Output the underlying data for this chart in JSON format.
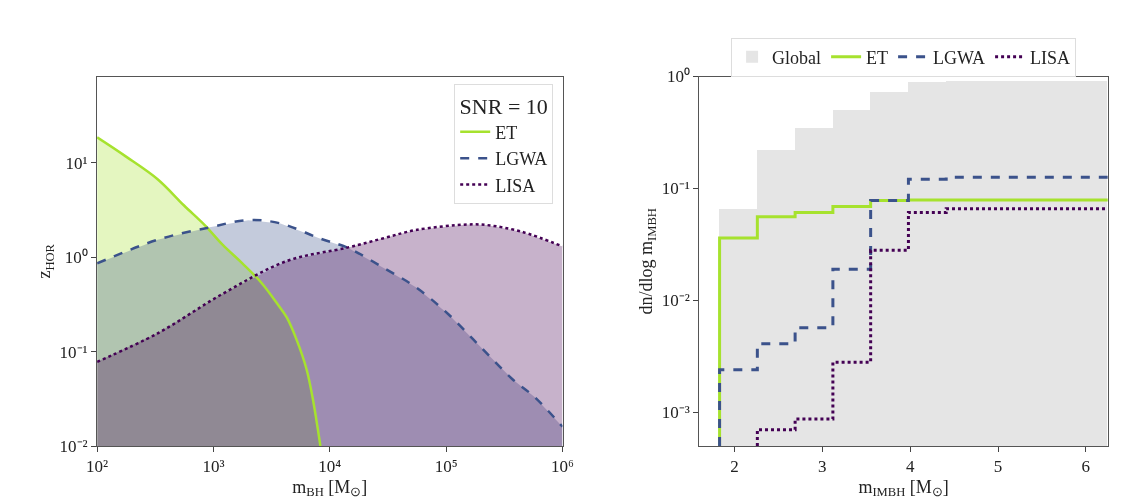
{
  "chart_data": [
    {
      "type": "area",
      "xlabel": "m$_{BH}$ [M$_{⊙}$]",
      "ylabel": "z$_{HOR}$",
      "legend_title": "SNR = 10",
      "legend": "top right",
      "log": "xy",
      "xlim": [
        100,
        1000000
      ],
      "ylim": [
        0.01,
        82
      ],
      "xticks": [
        {
          "value": 100,
          "label": "10²"
        },
        {
          "value": 1000,
          "label": "10³"
        },
        {
          "value": 10000,
          "label": "10⁴"
        },
        {
          "value": 100000,
          "label": "10⁵"
        },
        {
          "value": 1000000,
          "label": "10⁶"
        }
      ],
      "yticks": [
        {
          "value": 0.01,
          "label": "10⁻²"
        },
        {
          "value": 0.1,
          "label": "10⁻¹"
        },
        {
          "value": 1,
          "label": "10⁰"
        },
        {
          "value": 10,
          "label": "10¹"
        }
      ],
      "series": [
        {
          "name": "ET",
          "color": "#a6e22e",
          "line_style": "solid",
          "x": [
            100,
            176,
            331,
            556,
            841,
            1202,
            1754,
            2570,
            3548,
            4266,
            5188,
            6310,
            7129,
            8300
          ],
          "values": [
            18.6,
            11.7,
            6.7,
            3.55,
            2.19,
            1.35,
            0.87,
            0.54,
            0.32,
            0.23,
            0.133,
            0.065,
            0.032,
            0.01
          ]
        },
        {
          "name": "LGWA",
          "color": "#3b528b",
          "line_style": "dashed",
          "x": [
            100,
            331,
            927,
            1995,
            3767,
            8110,
            14390,
            29040,
            54950,
            104000,
            195000,
            371500,
            575400,
            1000000
          ],
          "values": [
            0.86,
            1.53,
            2.07,
            2.47,
            2.28,
            1.59,
            1.25,
            0.77,
            0.48,
            0.25,
            0.114,
            0.051,
            0.033,
            0.016
          ]
        },
        {
          "name": "LISA",
          "color": "#440154",
          "line_style": "dotted",
          "x": [
            100,
            331,
            1202,
            4266,
            14390,
            29040,
            54950,
            151400,
            223900,
            446700,
            1000000
          ],
          "values": [
            0.078,
            0.156,
            0.41,
            0.91,
            1.27,
            1.59,
            1.94,
            2.22,
            2.19,
            1.86,
            1.3
          ]
        }
      ]
    },
    {
      "type": "histogram",
      "xlabel": "m$_{IMBH}$ [M$_{⊙}$]",
      "ylabel": "dn/dlog m$_{IMBH}$",
      "legend": "top",
      "log": "y",
      "xlim": [
        1.6,
        6.25
      ],
      "ylim": [
        0.0005,
        1.0
      ],
      "xticks": [
        2,
        3,
        4,
        5,
        6
      ],
      "yticks": [
        {
          "value": 0.001,
          "label": "10⁻³"
        },
        {
          "value": 0.01,
          "label": "10⁻²"
        },
        {
          "value": 0.1,
          "label": "10⁻¹"
        },
        {
          "value": 1,
          "label": "10⁰"
        }
      ],
      "bins": [
        1.83,
        2.26,
        2.69,
        3.12,
        3.55,
        3.98,
        4.41,
        6.25
      ],
      "series": [
        {
          "name": "Global",
          "color": "#e5e5e5",
          "values": [
            0.066,
            0.22,
            0.35,
            0.51,
            0.73,
            0.91,
            0.93
          ]
        },
        {
          "name": "ET",
          "color": "#a6e22e",
          "line_style": "solid",
          "values": [
            0.036,
            0.056,
            0.061,
            0.069,
            0.078,
            0.079,
            0.079
          ]
        },
        {
          "name": "LGWA",
          "color": "#3b528b",
          "line_style": "dashed",
          "values": [
            0.0024,
            0.0041,
            0.0057,
            0.019,
            0.078,
            0.121,
            0.126
          ]
        },
        {
          "name": "LISA",
          "color": "#440154",
          "line_style": "dotted",
          "bins": [
            2.26,
            2.69,
            3.12,
            3.55,
            3.98,
            4.41,
            6.25
          ],
          "values": [
            0.0007,
            0.00087,
            0.0028,
            0.028,
            0.061,
            0.066
          ]
        }
      ]
    }
  ]
}
